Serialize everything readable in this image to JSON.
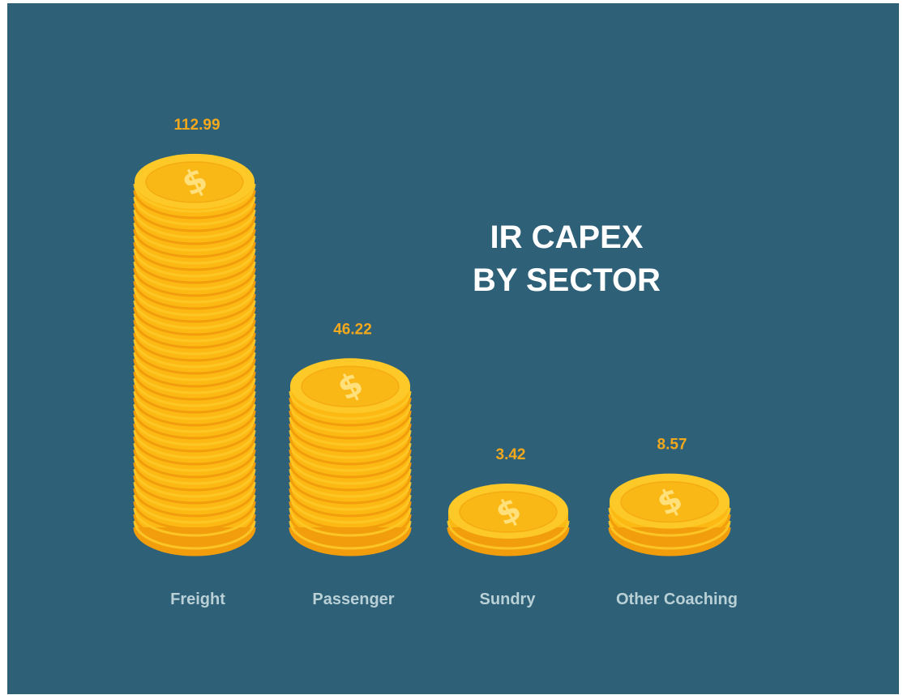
{
  "title_lines": [
    "IR CAPEX",
    "BY SECTOR"
  ],
  "chart_data": {
    "type": "bar",
    "style": "stacked-coins",
    "title": "IR CAPEX BY SECTOR",
    "categories": [
      "Freight",
      "Passenger",
      "Sundry",
      "Other Coaching"
    ],
    "values": [
      112.99,
      46.22,
      3.42,
      8.57
    ],
    "value_labels": [
      "112.99",
      "46.22",
      "3.42",
      "8.57"
    ],
    "coin_icon": "dollar-coin-icon",
    "grid": false,
    "legend": "none"
  },
  "colors": {
    "background": "#2e6078",
    "value_text": "#f4a81c",
    "category_text": "#b9d0d6",
    "title_text": "#ffffff",
    "coin_face": "#fcc928",
    "coin_inner": "#f9b816",
    "coin_edge": "#fdb913",
    "coin_edge_dark": "#f29e0c",
    "coin_glyph": "#ffe07a"
  }
}
